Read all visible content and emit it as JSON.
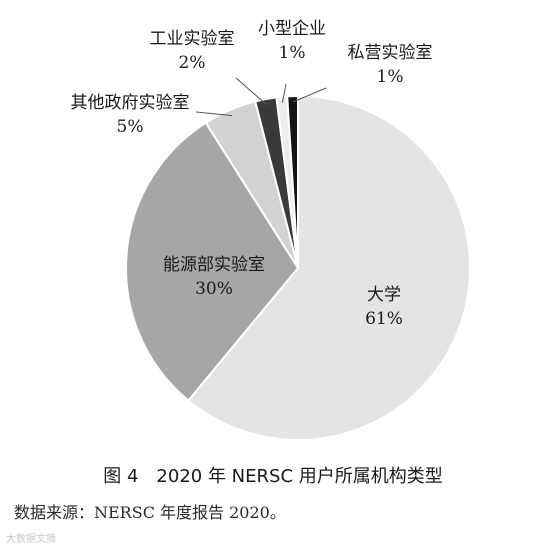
{
  "chart_data": {
    "type": "pie",
    "title": "",
    "slices": [
      {
        "label": "大学",
        "value": 61,
        "pct_text": "61%",
        "color": "#e4e4e4"
      },
      {
        "label": "能源部实验室",
        "value": 30,
        "pct_text": "30%",
        "color": "#a6a6a6"
      },
      {
        "label": "其他政府实验室",
        "value": 5,
        "pct_text": "5%",
        "color": "#d2d2d2"
      },
      {
        "label": "工业实验室",
        "value": 2,
        "pct_text": "2%",
        "color": "#3a3a3a"
      },
      {
        "label": "小型企业",
        "value": 1,
        "pct_text": "1%",
        "color": "#ececec"
      },
      {
        "label": "私营实验室",
        "value": 1,
        "pct_text": "1%",
        "color": "#151515"
      }
    ]
  },
  "caption": "图 4　2020 年 NERSC 用户所属机构类型",
  "source": "数据来源：NERSC 年度报告 2020。",
  "watermark": "大数据文摘"
}
